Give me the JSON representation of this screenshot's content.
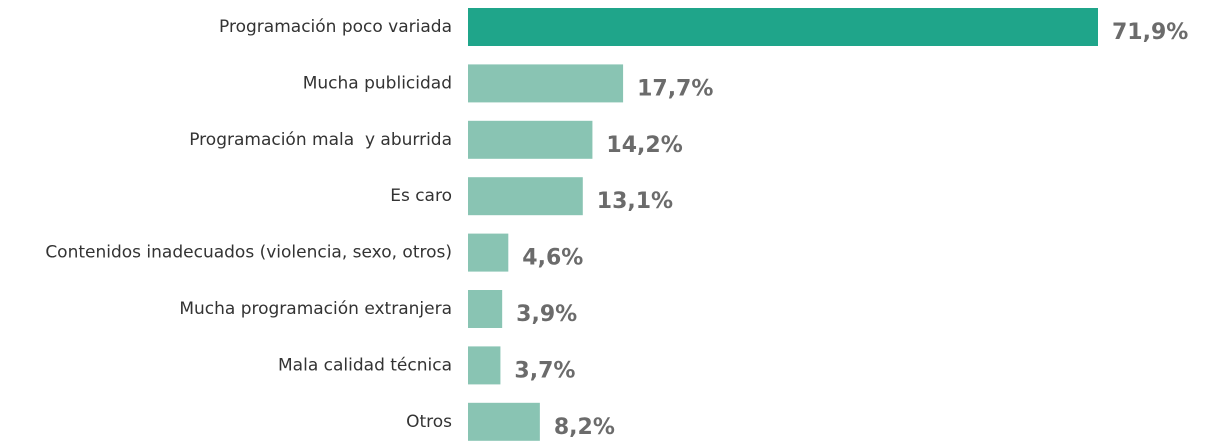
{
  "chart_data": {
    "type": "hbar",
    "categories": [
      "Programación poco variada",
      "Mucha publicidad",
      "Programación mala  y aburrida",
      "Es caro",
      "Contenidos inadecuados (violencia, sexo, otros)",
      "Mucha programación extranjera",
      "Mala calidad técnica",
      "Otros"
    ],
    "values": [
      71.9,
      17.7,
      14.2,
      13.1,
      4.6,
      3.9,
      3.7,
      8.2
    ],
    "value_labels": [
      "71,9%",
      "17,7%",
      "14,2%",
      "13,1%",
      "4,6%",
      "3,9%",
      "3,7%",
      "8,2%"
    ],
    "colors": [
      "#1fa58a",
      "#89c4b3",
      "#89c4b3",
      "#89c4b3",
      "#89c4b3",
      "#89c4b3",
      "#89c4b3",
      "#89c4b3"
    ]
  }
}
